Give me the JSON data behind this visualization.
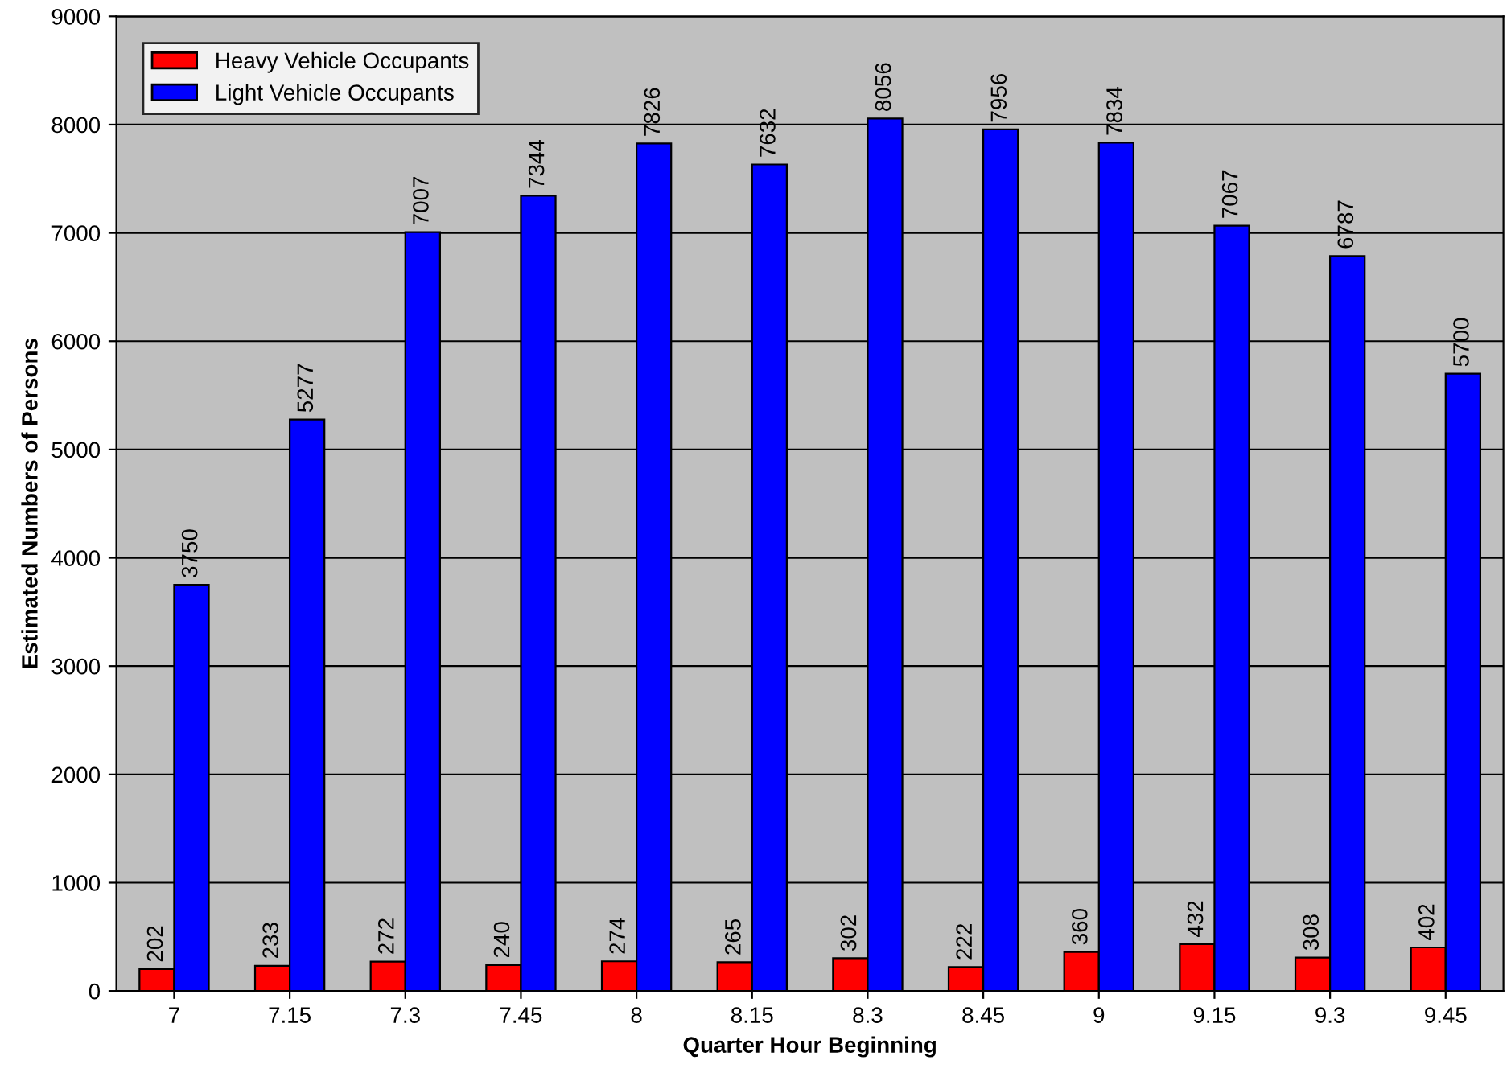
{
  "chart_data": {
    "type": "bar",
    "xlabel": "Quarter Hour Beginning",
    "ylabel": "Estimated Numbers of Persons",
    "categories": [
      "7",
      "7.15",
      "7.3",
      "7.45",
      "8",
      "8.15",
      "8.3",
      "8.45",
      "9",
      "9.15",
      "9.3",
      "9.45"
    ],
    "series": [
      {
        "name": "Heavy Vehicle Occupants",
        "color": "#ff0000",
        "values": [
          202,
          233,
          272,
          240,
          274,
          265,
          302,
          222,
          360,
          432,
          308,
          402
        ]
      },
      {
        "name": "Light Vehicle Occupants",
        "color": "#0000ff",
        "values": [
          3750,
          5277,
          7007,
          7344,
          7826,
          7632,
          8056,
          7956,
          7834,
          7067,
          6787,
          5700
        ]
      }
    ],
    "ylim": [
      0,
      9000
    ],
    "yticks": [
      0,
      1000,
      2000,
      3000,
      4000,
      5000,
      6000,
      7000,
      8000,
      9000
    ],
    "grid": "y",
    "legend": "top left",
    "data_labels": true
  }
}
